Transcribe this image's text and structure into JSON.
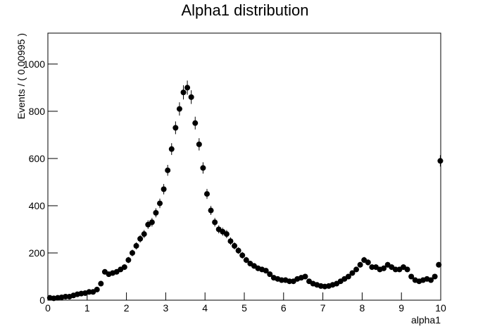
{
  "chart_data": {
    "type": "scatter",
    "title": "Alpha1 distribution",
    "x_label": "alpha1",
    "y_label": "Events / ( 0.00995 )",
    "xlim": [
      0,
      10
    ],
    "ylim": [
      0,
      1131
    ],
    "xticks": [
      0,
      1,
      2,
      3,
      4,
      5,
      6,
      7,
      8,
      9,
      10
    ],
    "yticks": [
      0,
      200,
      400,
      600,
      800,
      1000
    ],
    "color": "#000000",
    "x": [
      0.05,
      0.15,
      0.25,
      0.35,
      0.45,
      0.55,
      0.65,
      0.75,
      0.85,
      0.95,
      1.05,
      1.15,
      1.25,
      1.35,
      1.45,
      1.55,
      1.65,
      1.75,
      1.85,
      1.95,
      2.05,
      2.15,
      2.25,
      2.35,
      2.45,
      2.55,
      2.65,
      2.75,
      2.85,
      2.95,
      3.05,
      3.15,
      3.25,
      3.35,
      3.45,
      3.55,
      3.65,
      3.75,
      3.85,
      3.95,
      4.05,
      4.15,
      4.25,
      4.35,
      4.45,
      4.55,
      4.65,
      4.75,
      4.85,
      4.95,
      5.05,
      5.15,
      5.25,
      5.35,
      5.45,
      5.55,
      5.65,
      5.75,
      5.85,
      5.95,
      6.05,
      6.15,
      6.25,
      6.35,
      6.45,
      6.55,
      6.65,
      6.75,
      6.85,
      6.95,
      7.05,
      7.15,
      7.25,
      7.35,
      7.45,
      7.55,
      7.65,
      7.75,
      7.85,
      7.95,
      8.05,
      8.15,
      8.25,
      8.35,
      8.45,
      8.55,
      8.65,
      8.75,
      8.85,
      8.95,
      9.05,
      9.15,
      9.25,
      9.35,
      9.45,
      9.55,
      9.65,
      9.75,
      9.85,
      9.95,
      9.99
    ],
    "values": [
      10,
      8,
      10,
      12,
      15,
      15,
      20,
      25,
      28,
      30,
      35,
      35,
      45,
      70,
      120,
      110,
      115,
      120,
      130,
      140,
      170,
      200,
      230,
      260,
      280,
      320,
      330,
      370,
      410,
      470,
      550,
      640,
      730,
      810,
      880,
      900,
      860,
      750,
      660,
      560,
      450,
      380,
      330,
      300,
      290,
      280,
      250,
      230,
      210,
      190,
      170,
      155,
      145,
      135,
      130,
      125,
      110,
      95,
      90,
      85,
      85,
      80,
      80,
      90,
      95,
      100,
      80,
      70,
      65,
      60,
      58,
      60,
      65,
      70,
      80,
      90,
      100,
      115,
      130,
      150,
      170,
      160,
      140,
      140,
      130,
      135,
      150,
      140,
      130,
      130,
      140,
      130,
      100,
      85,
      80,
      85,
      90,
      85,
      100,
      150,
      590
    ],
    "errors": [
      3,
      3,
      3,
      3,
      4,
      4,
      4,
      5,
      5,
      5,
      6,
      6,
      7,
      8,
      11,
      10,
      11,
      11,
      11,
      12,
      13,
      14,
      15,
      16,
      17,
      18,
      18,
      19,
      20,
      22,
      23,
      25,
      27,
      28,
      30,
      30,
      29,
      27,
      26,
      24,
      21,
      19,
      18,
      17,
      17,
      17,
      16,
      15,
      14,
      14,
      13,
      12,
      12,
      12,
      11,
      11,
      10,
      10,
      9,
      9,
      9,
      9,
      9,
      9,
      10,
      10,
      9,
      8,
      8,
      8,
      8,
      8,
      8,
      8,
      9,
      9,
      10,
      11,
      11,
      12,
      13,
      13,
      12,
      12,
      11,
      12,
      12,
      12,
      11,
      11,
      12,
      11,
      10,
      9,
      9,
      9,
      9,
      9,
      10,
      12,
      24
    ]
  }
}
